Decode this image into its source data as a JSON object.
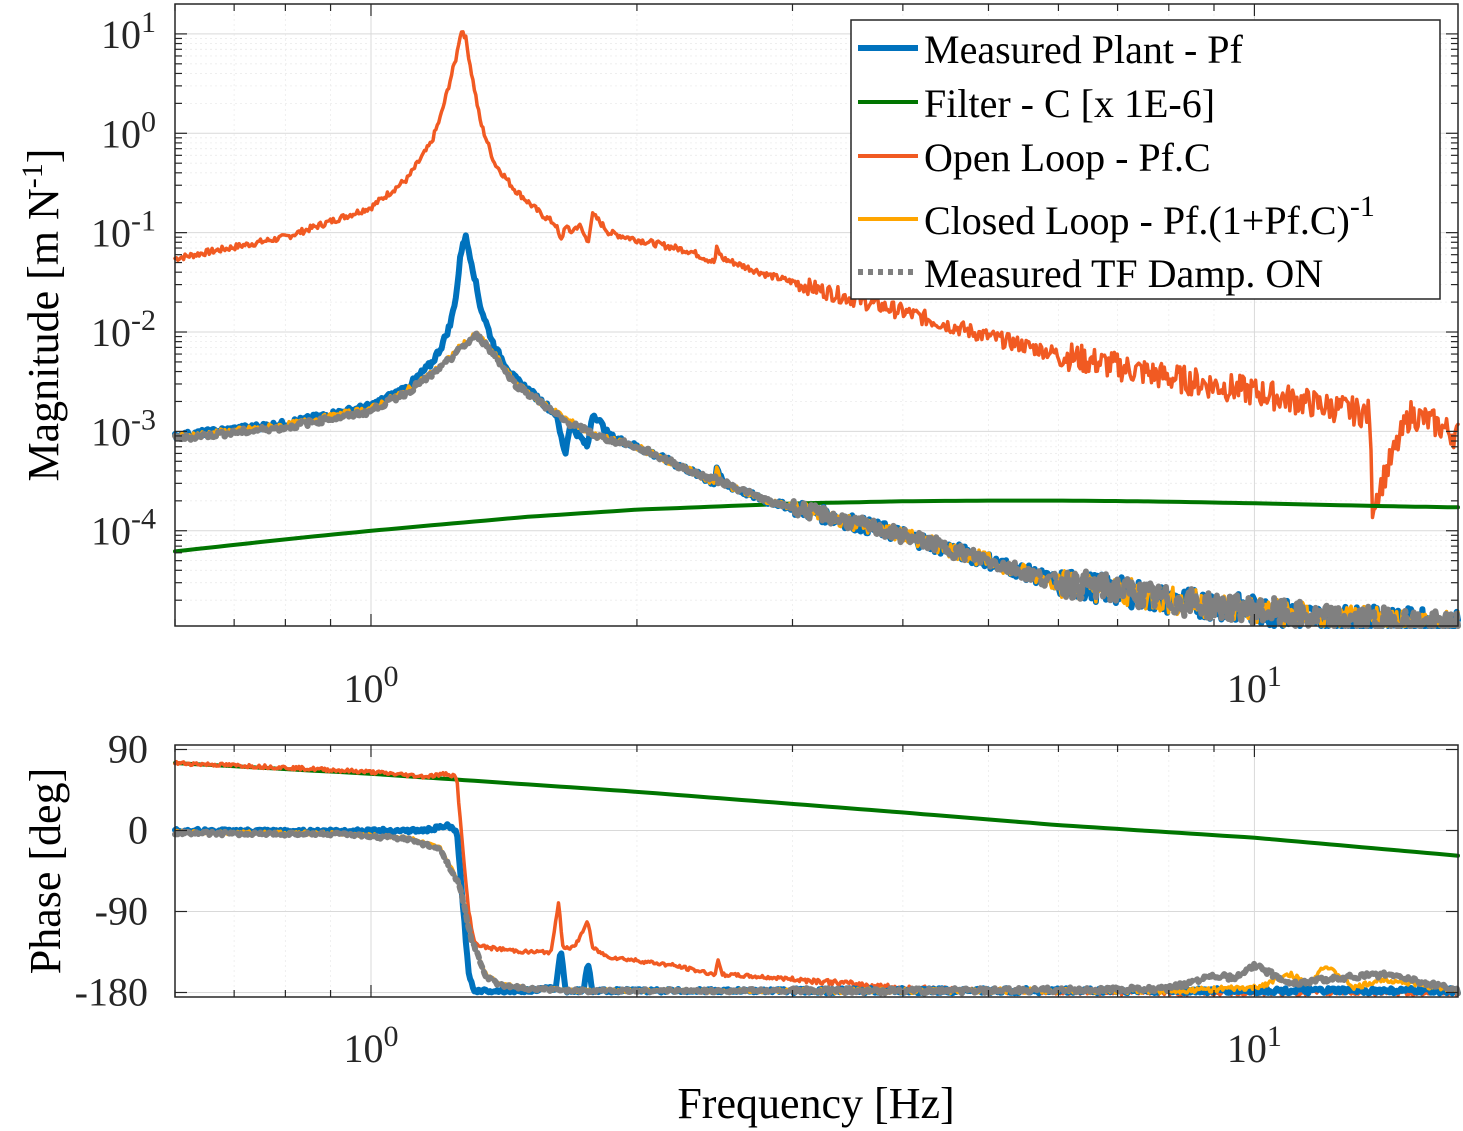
{
  "chart_data": [
    {
      "type": "line",
      "panel": "magnitude",
      "title": "",
      "xlabel": "",
      "ylabel": "Magnitude [m N^-1]",
      "xscale": "log",
      "yscale": "log",
      "xlim": [
        0.6,
        17
      ],
      "ylim": [
        1.1e-05,
        20
      ],
      "xtick_labels": [
        {
          "base": "10",
          "exp": "0"
        },
        {
          "base": "10",
          "exp": "1"
        }
      ],
      "ytick_labels": [
        {
          "base": "10",
          "exp": "1"
        },
        {
          "base": "10",
          "exp": "0"
        },
        {
          "base": "10",
          "exp": "-1"
        },
        {
          "base": "10",
          "exp": "-2"
        },
        {
          "base": "10",
          "exp": "-3"
        },
        {
          "base": "10",
          "exp": "-4"
        }
      ],
      "grid": true,
      "legend_position": "top-right",
      "series": [
        {
          "name": "Measured Plant - Pf",
          "color": "#0072BD",
          "style": "solid",
          "x": [
            0.6,
            0.8,
            1.0,
            1.1,
            1.17,
            1.2,
            1.23,
            1.25,
            1.26,
            1.27,
            1.28,
            1.3,
            1.33,
            1.38,
            1.45,
            1.55,
            1.62,
            1.64,
            1.66,
            1.68,
            1.72,
            1.76,
            1.78,
            1.8,
            1.86,
            2.0,
            2.3,
            2.45,
            2.46,
            2.5,
            2.8,
            3.2,
            4,
            5,
            6,
            7,
            8,
            10,
            12,
            15,
            17
          ],
          "y": [
            0.0009,
            0.0012,
            0.0018,
            0.0028,
            0.0048,
            0.007,
            0.012,
            0.025,
            0.05,
            0.08,
            0.09,
            0.05,
            0.018,
            0.007,
            0.0035,
            0.0021,
            0.0015,
            0.0009,
            0.0006,
            0.0012,
            0.0009,
            0.0007,
            0.0015,
            0.0014,
            0.0009,
            0.0007,
            0.0004,
            0.0003,
            0.00045,
            0.0003,
            0.0002,
            0.00015,
            9e-05,
            5e-05,
            3e-05,
            2.5e-05,
            2e-05,
            1.6e-05,
            1.3e-05,
            1.2e-05,
            1.1e-05
          ]
        },
        {
          "name": "Filter - C   [x 1E-6]",
          "color": "#007500",
          "style": "solid",
          "x": [
            0.6,
            0.8,
            1.0,
            1.5,
            2,
            3,
            4,
            5,
            6,
            7,
            8,
            10,
            12,
            15,
            17
          ],
          "y": [
            6.2e-05,
            8.2e-05,
            0.0001,
            0.000138,
            0.000163,
            0.000188,
            0.000198,
            0.000201,
            0.000201,
            0.000199,
            0.000196,
            0.000189,
            0.000182,
            0.000175,
            0.000172
          ]
        },
        {
          "name": "Open Loop - Pf.C",
          "color": "#F15A22",
          "style": "solid",
          "x": [
            0.6,
            0.8,
            1.0,
            1.1,
            1.17,
            1.2,
            1.23,
            1.25,
            1.26,
            1.27,
            1.28,
            1.3,
            1.33,
            1.38,
            1.45,
            1.55,
            1.62,
            1.64,
            1.66,
            1.68,
            1.72,
            1.76,
            1.78,
            1.8,
            1.86,
            2.0,
            2.3,
            2.45,
            2.46,
            2.5,
            2.8,
            3.2,
            4,
            5,
            6,
            7,
            8,
            10,
            12,
            13.5,
            13.6,
            15,
            16,
            17
          ],
          "y": [
            0.055,
            0.09,
            0.18,
            0.35,
            0.8,
            1.5,
            3.5,
            6,
            9.5,
            11,
            9,
            4,
            1.3,
            0.5,
            0.28,
            0.16,
            0.12,
            0.08,
            0.12,
            0.1,
            0.12,
            0.08,
            0.15,
            0.14,
            0.1,
            0.085,
            0.065,
            0.05,
            0.07,
            0.055,
            0.038,
            0.027,
            0.016,
            0.009,
            0.006,
            0.0045,
            0.0035,
            0.0025,
            0.0018,
            0.0015,
            0.00018,
            0.0015,
            0.0012,
            0.0009
          ]
        },
        {
          "name": "Closed Loop - Pf.(1+Pf.C)^-1",
          "color": "#FFA500",
          "style": "solid",
          "x": [
            0.6,
            0.8,
            1.0,
            1.1,
            1.2,
            1.27,
            1.32,
            1.38,
            1.45,
            1.55,
            1.65,
            1.72,
            1.8,
            2.0,
            2.3,
            2.45,
            2.46,
            2.5,
            2.8,
            3.2,
            4,
            5,
            6,
            7,
            8,
            10,
            12,
            15,
            17
          ],
          "y": [
            0.00088,
            0.00115,
            0.0017,
            0.0026,
            0.0045,
            0.0075,
            0.0095,
            0.006,
            0.0032,
            0.002,
            0.0014,
            0.0011,
            0.0009,
            0.0007,
            0.0004,
            0.0003,
            0.00045,
            0.0003,
            0.0002,
            0.00015,
            9e-05,
            5e-05,
            3e-05,
            2.5e-05,
            2e-05,
            1.6e-05,
            1.3e-05,
            1.2e-05,
            1.1e-05
          ]
        },
        {
          "name": "Measured TF Damp. ON",
          "color": "#808080",
          "style": "dotted",
          "x": [
            0.6,
            0.8,
            1.0,
            1.1,
            1.2,
            1.27,
            1.32,
            1.38,
            1.45,
            1.55,
            1.65,
            1.72,
            1.8,
            2.0,
            2.3,
            2.5,
            2.8,
            3.2,
            4,
            5,
            6,
            7,
            8,
            10,
            12,
            15,
            17
          ],
          "y": [
            0.00085,
            0.0011,
            0.0016,
            0.0025,
            0.0043,
            0.0072,
            0.0093,
            0.0058,
            0.0031,
            0.002,
            0.0013,
            0.0011,
            0.0009,
            0.0007,
            0.0004,
            0.00031,
            0.0002,
            0.00015,
            9e-05,
            5e-05,
            3e-05,
            2.6e-05,
            2e-05,
            1.6e-05,
            1.3e-05,
            1.2e-05,
            1.1e-05
          ]
        }
      ],
      "legend": [
        {
          "text": "Measured Plant - Pf",
          "color": "#0072BD",
          "style": "solid"
        },
        {
          "text": "Filter - C   [x 1E-6]",
          "color": "#007500",
          "style": "solid"
        },
        {
          "text": "Open Loop - Pf.C",
          "color": "#F15A22",
          "style": "solid"
        },
        {
          "text": "Closed Loop - Pf.(1+Pf.C)",
          "sup": "-1",
          "color": "#FFA500",
          "style": "solid"
        },
        {
          "text": "Measured TF Damp. ON",
          "color": "#808080",
          "style": "dotted"
        }
      ]
    },
    {
      "type": "line",
      "panel": "phase",
      "title": "",
      "xlabel": "Frequency [Hz]",
      "ylabel": "Phase [deg]",
      "xscale": "log",
      "yscale": "linear",
      "xlim": [
        0.6,
        17
      ],
      "ylim": [
        -185,
        95
      ],
      "xtick_labels": [
        {
          "base": "10",
          "exp": "0"
        },
        {
          "base": "10",
          "exp": "1"
        }
      ],
      "ytick_labels": [
        "90",
        "0",
        "-90",
        "-180"
      ],
      "grid": true,
      "series": [
        {
          "name": "Measured Plant - Pf",
          "color": "#0072BD",
          "style": "solid",
          "x": [
            0.6,
            0.8,
            1.0,
            1.15,
            1.22,
            1.25,
            1.27,
            1.29,
            1.31,
            1.35,
            1.5,
            1.62,
            1.64,
            1.66,
            1.7,
            1.74,
            1.76,
            1.78,
            1.82,
            2.0,
            3,
            5,
            8,
            12,
            17
          ],
          "y": [
            0,
            -1,
            0,
            0,
            5,
            0,
            -80,
            -160,
            -178,
            -178,
            -178,
            -175,
            -130,
            -178,
            -178,
            -178,
            -145,
            -178,
            -178,
            -178,
            -178,
            -178,
            -178,
            -178,
            -178
          ]
        },
        {
          "name": "Filter - C   [x 1E-6]",
          "color": "#007500",
          "style": "solid",
          "x": [
            0.6,
            1.0,
            2,
            4,
            6,
            10,
            17
          ],
          "y": [
            75,
            63,
            43,
            20,
            6,
            -8,
            -28
          ]
        },
        {
          "name": "Open Loop - Pf.C",
          "color": "#F15A22",
          "style": "solid",
          "x": [
            0.6,
            0.8,
            1.0,
            1.15,
            1.22,
            1.25,
            1.27,
            1.29,
            1.31,
            1.35,
            1.5,
            1.6,
            1.63,
            1.65,
            1.7,
            1.74,
            1.76,
            1.78,
            1.85,
            2.2,
            2.45,
            2.47,
            2.5,
            3,
            4,
            5,
            6,
            8,
            12,
            17
          ],
          "y": [
            75,
            70,
            65,
            60,
            63,
            60,
            -20,
            -90,
            -125,
            -130,
            -135,
            -135,
            -80,
            -130,
            -130,
            -110,
            -100,
            -130,
            -140,
            -150,
            -160,
            -145,
            -160,
            -165,
            -175,
            -178,
            -179,
            -180,
            -180,
            -180
          ]
        },
        {
          "name": "Closed Loop - Pf.(1+Pf.C)^-1",
          "color": "#FFA500",
          "style": "solid",
          "x": [
            0.6,
            0.9,
            1.1,
            1.2,
            1.26,
            1.3,
            1.35,
            1.4,
            1.5,
            1.7,
            2,
            3,
            5,
            8,
            10,
            11,
            11.5,
            12,
            13,
            14,
            17
          ],
          "y": [
            -2,
            -3,
            -8,
            -20,
            -60,
            -120,
            -160,
            -170,
            -175,
            -178,
            -178,
            -178,
            -178,
            -178,
            -175,
            -160,
            -170,
            -150,
            -175,
            -165,
            -178
          ]
        },
        {
          "name": "Measured TF Damp. ON",
          "color": "#808080",
          "style": "dotted",
          "x": [
            0.6,
            0.9,
            1.1,
            1.2,
            1.26,
            1.3,
            1.35,
            1.4,
            1.5,
            1.7,
            2,
            3,
            5,
            8,
            9,
            9.5,
            10,
            11,
            12,
            14,
            15,
            17
          ],
          "y": [
            -3,
            -4,
            -9,
            -22,
            -62,
            -122,
            -162,
            -172,
            -176,
            -178,
            -178,
            -178,
            -178,
            -176,
            -160,
            -165,
            -150,
            -170,
            -165,
            -160,
            -165,
            -178
          ]
        }
      ]
    }
  ]
}
